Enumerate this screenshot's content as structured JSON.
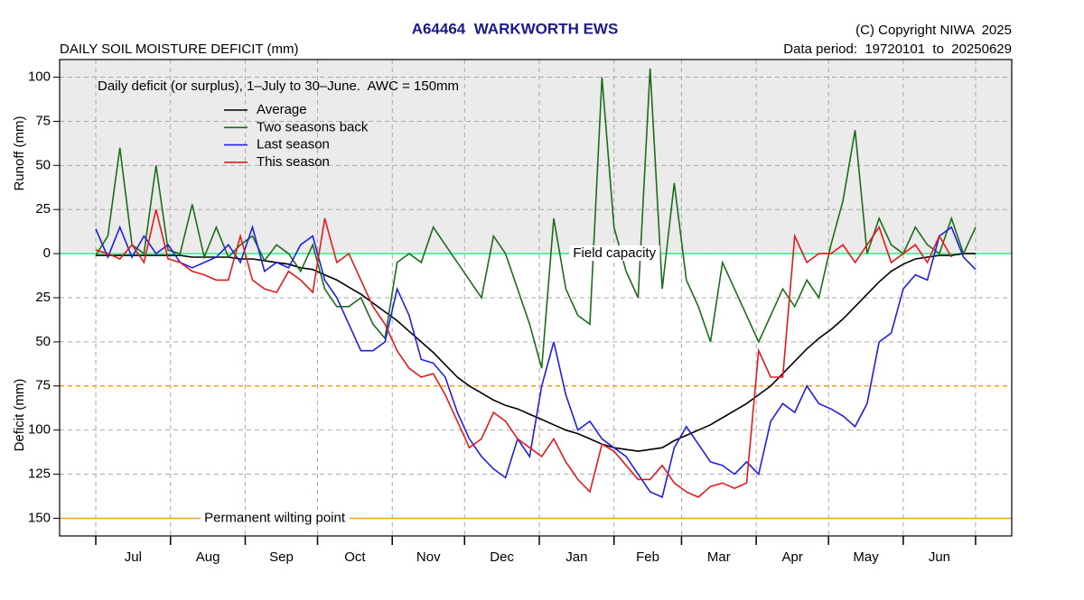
{
  "chart_data": {
    "type": "line",
    "title": "A64464  WARKWORTH EWS",
    "subtitle": "DAILY SOIL MOISTURE DEFICIT (mm)",
    "copyright": "(C) Copyright NIWA  2025",
    "data_period": "Data period:  19720101  to  20250629",
    "annotation": "Daily deficit (or surplus), 1–July to 30–June.  AWC = 150mm",
    "y_label_top": "Runoff (mm)",
    "y_label_bottom": "Deficit (mm)",
    "xlim": [
      -15,
      380
    ],
    "ylim": [
      -160,
      110
    ],
    "xticks": [
      0,
      31,
      62,
      92,
      123,
      153,
      184,
      215,
      243,
      274,
      304,
      335,
      365
    ],
    "month_labels": [
      {
        "value": 15.5,
        "label": "Jul"
      },
      {
        "value": 46.5,
        "label": "Aug"
      },
      {
        "value": 77,
        "label": "Sep"
      },
      {
        "value": 107.5,
        "label": "Oct"
      },
      {
        "value": 138,
        "label": "Nov"
      },
      {
        "value": 168.5,
        "label": "Dec"
      },
      {
        "value": 199.5,
        "label": "Jan"
      },
      {
        "value": 229,
        "label": "Feb"
      },
      {
        "value": 258.5,
        "label": "Mar"
      },
      {
        "value": 289,
        "label": "Apr"
      },
      {
        "value": 319.5,
        "label": "May"
      },
      {
        "value": 350,
        "label": "Jun"
      }
    ],
    "yticks": [
      100,
      75,
      50,
      25,
      0,
      {
        "value": -25,
        "label": "25"
      },
      {
        "value": -50,
        "label": "50"
      },
      {
        "value": -75,
        "label": "75"
      },
      {
        "value": -100,
        "label": "100"
      },
      {
        "value": -125,
        "label": "125"
      },
      {
        "value": -150,
        "label": "150"
      }
    ],
    "grid": true,
    "reference_lines": [
      {
        "value": 0,
        "label": "Field capacity",
        "color": "#33ee88",
        "dash": false,
        "label_x": 198
      },
      {
        "value": -75,
        "color": "#f0a020",
        "dash": true
      },
      {
        "value": -150,
        "label": "Permanent wilting point",
        "color": "#f0a020",
        "dash": false,
        "label_x": 45
      }
    ],
    "legend": "upper-left",
    "x": [
      0,
      5,
      10,
      15,
      20,
      25,
      30,
      35,
      40,
      45,
      50,
      55,
      60,
      65,
      70,
      75,
      80,
      85,
      90,
      95,
      100,
      105,
      110,
      115,
      120,
      125,
      130,
      135,
      140,
      145,
      150,
      155,
      160,
      165,
      170,
      175,
      180,
      185,
      190,
      195,
      200,
      205,
      210,
      215,
      220,
      225,
      230,
      235,
      240,
      245,
      250,
      255,
      260,
      265,
      270,
      275,
      280,
      285,
      290,
      295,
      300,
      305,
      310,
      315,
      320,
      325,
      330,
      335,
      340,
      345,
      350,
      355,
      360,
      365
    ],
    "series": [
      {
        "name": "Average",
        "color": "#000000",
        "values": [
          -1,
          -1,
          -1,
          -1,
          -1,
          -1,
          -1,
          -1,
          -2,
          -2,
          -2,
          -2,
          -3,
          -3,
          -4,
          -5,
          -6,
          -8,
          -9,
          -12,
          -15,
          -19,
          -23,
          -28,
          -33,
          -38,
          -44,
          -50,
          -56,
          -63,
          -70,
          -75,
          -79,
          -83,
          -86,
          -88,
          -91,
          -94,
          -97,
          -100,
          -102,
          -105,
          -108,
          -110,
          -111,
          -112,
          -111,
          -110,
          -106,
          -103,
          -100,
          -97,
          -93,
          -89,
          -85,
          -80,
          -75,
          -68,
          -61,
          -54,
          -48,
          -43,
          -37,
          -30,
          -23,
          -16,
          -10,
          -6,
          -3,
          -2,
          -1,
          -1,
          0,
          0
        ]
      },
      {
        "name": "Two seasons back",
        "color": "#1a6e1a",
        "values": [
          -1,
          10,
          60,
          5,
          0,
          50,
          2,
          0,
          28,
          -2,
          15,
          -2,
          5,
          10,
          -4,
          5,
          0,
          -10,
          5,
          -20,
          -30,
          -30,
          -25,
          -40,
          -48,
          -5,
          0,
          -5,
          15,
          5,
          -5,
          -15,
          -25,
          10,
          0,
          -20,
          -40,
          -65,
          20,
          -20,
          -35,
          -40,
          100,
          15,
          -10,
          -25,
          105,
          -20,
          40,
          -15,
          -30,
          -50,
          -5,
          -20,
          -35,
          -50,
          -35,
          -20,
          -30,
          -15,
          -25,
          5,
          30,
          70,
          0,
          20,
          5,
          0,
          15,
          5,
          0,
          20,
          0,
          15
        ]
      },
      {
        "name": "Last season",
        "color": "#1f1fe6",
        "values": [
          14,
          -2,
          15,
          -2,
          10,
          0,
          5,
          -5,
          -8,
          -5,
          -2,
          5,
          -5,
          15,
          -10,
          -5,
          -8,
          5,
          10,
          -15,
          -25,
          -40,
          -55,
          -55,
          -50,
          -20,
          -35,
          -60,
          -62,
          -70,
          -90,
          -105,
          -115,
          -122,
          -127,
          -105,
          -115,
          -75,
          -50,
          -80,
          -100,
          -95,
          -105,
          -110,
          -115,
          -125,
          -135,
          -138,
          -110,
          -98,
          -108,
          -118,
          -120,
          -125,
          -118,
          -125,
          -95,
          -85,
          -90,
          -75,
          -85,
          -88,
          -92,
          -98,
          -85,
          -50,
          -45,
          -20,
          -12,
          -15,
          10,
          15,
          -2,
          -9
        ]
      },
      {
        "name": "This season",
        "color": "#e61a1a",
        "values": [
          2,
          0,
          -3,
          5,
          -5,
          25,
          -3,
          -5,
          -10,
          -12,
          -15,
          -15,
          10,
          -15,
          -20,
          -22,
          -10,
          -15,
          -22,
          20,
          -5,
          0,
          -15,
          -30,
          -40,
          -55,
          -65,
          -70,
          -68,
          -80,
          -95,
          -110,
          -105,
          -90,
          -95,
          -105,
          -110,
          -115,
          -105,
          -118,
          -128,
          -135,
          -108,
          -112,
          -120,
          -128,
          -128,
          -120,
          -130,
          -135,
          -138,
          -132,
          -130,
          -133,
          -130,
          -55,
          -70,
          -70,
          10,
          -5,
          0,
          0,
          5,
          -5,
          5,
          15,
          -5,
          0,
          5,
          -5,
          10,
          -2,
          null,
          null
        ]
      }
    ]
  }
}
